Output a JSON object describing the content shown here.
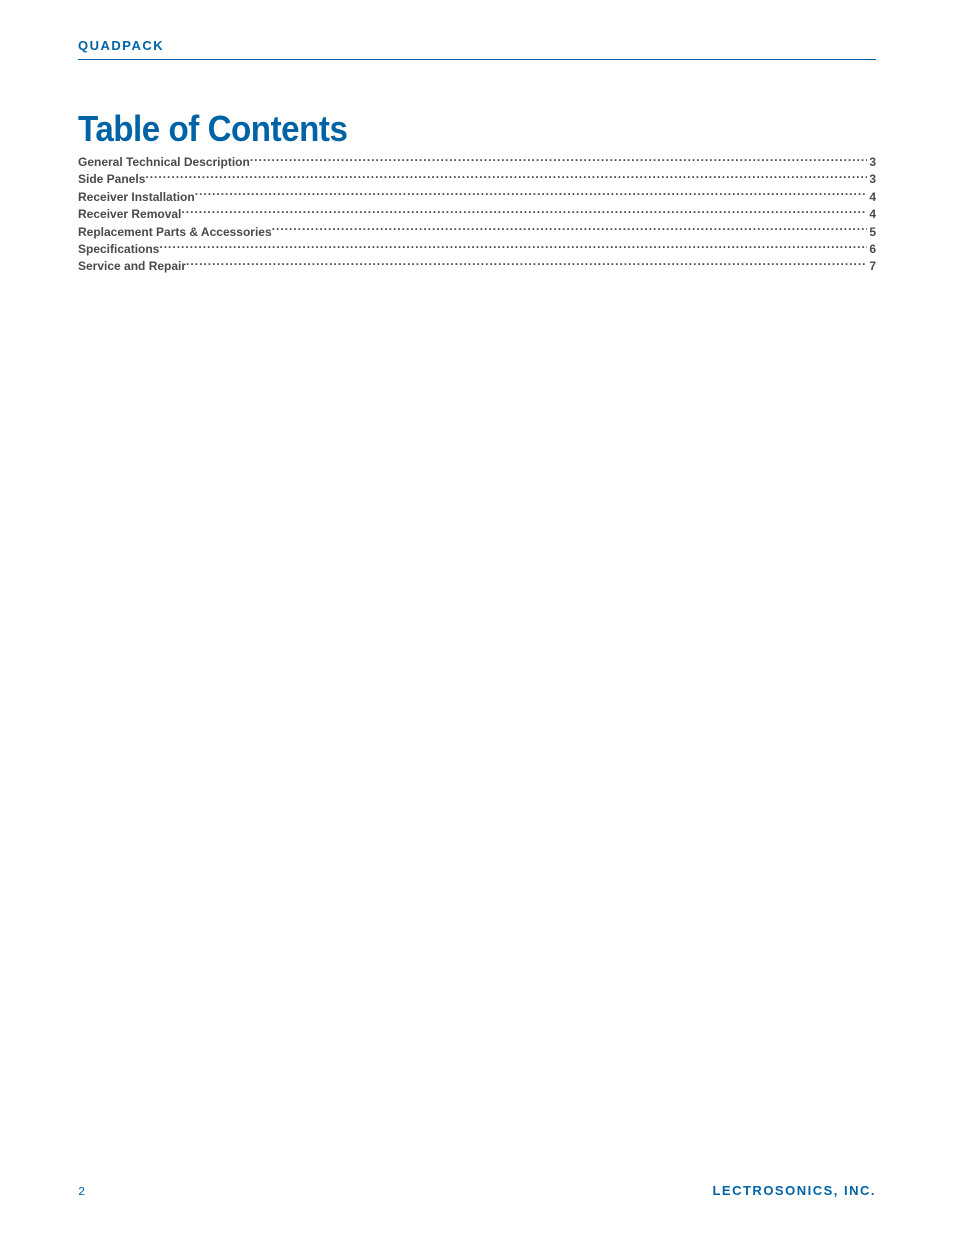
{
  "colors": {
    "brand_blue": "#0063a6",
    "text_gray": "#4a4a4a",
    "background": "#ffffff"
  },
  "typography": {
    "header_brand_fontsize": 13,
    "title_fontsize": 36,
    "toc_entry_fontsize": 12,
    "footer_fontsize": 13,
    "title_font_weight": 900,
    "entry_font_weight": 700
  },
  "header": {
    "brand": "QUADPACK"
  },
  "toc": {
    "title": "Table of Contents",
    "entries": [
      {
        "label": "General Technical Description",
        "page": "3"
      },
      {
        "label": "Side Panels",
        "page": "3"
      },
      {
        "label": "Receiver Installation",
        "page": "4"
      },
      {
        "label": "Receiver Removal",
        "page": "4"
      },
      {
        "label": "Replacement Parts & Accessories",
        "page": "5"
      },
      {
        "label": "Specifications",
        "page": "6"
      },
      {
        "label": "Service and Repair",
        "page": "7"
      }
    ]
  },
  "footer": {
    "page_number": "2",
    "company": "LECTROSONICS, INC."
  }
}
